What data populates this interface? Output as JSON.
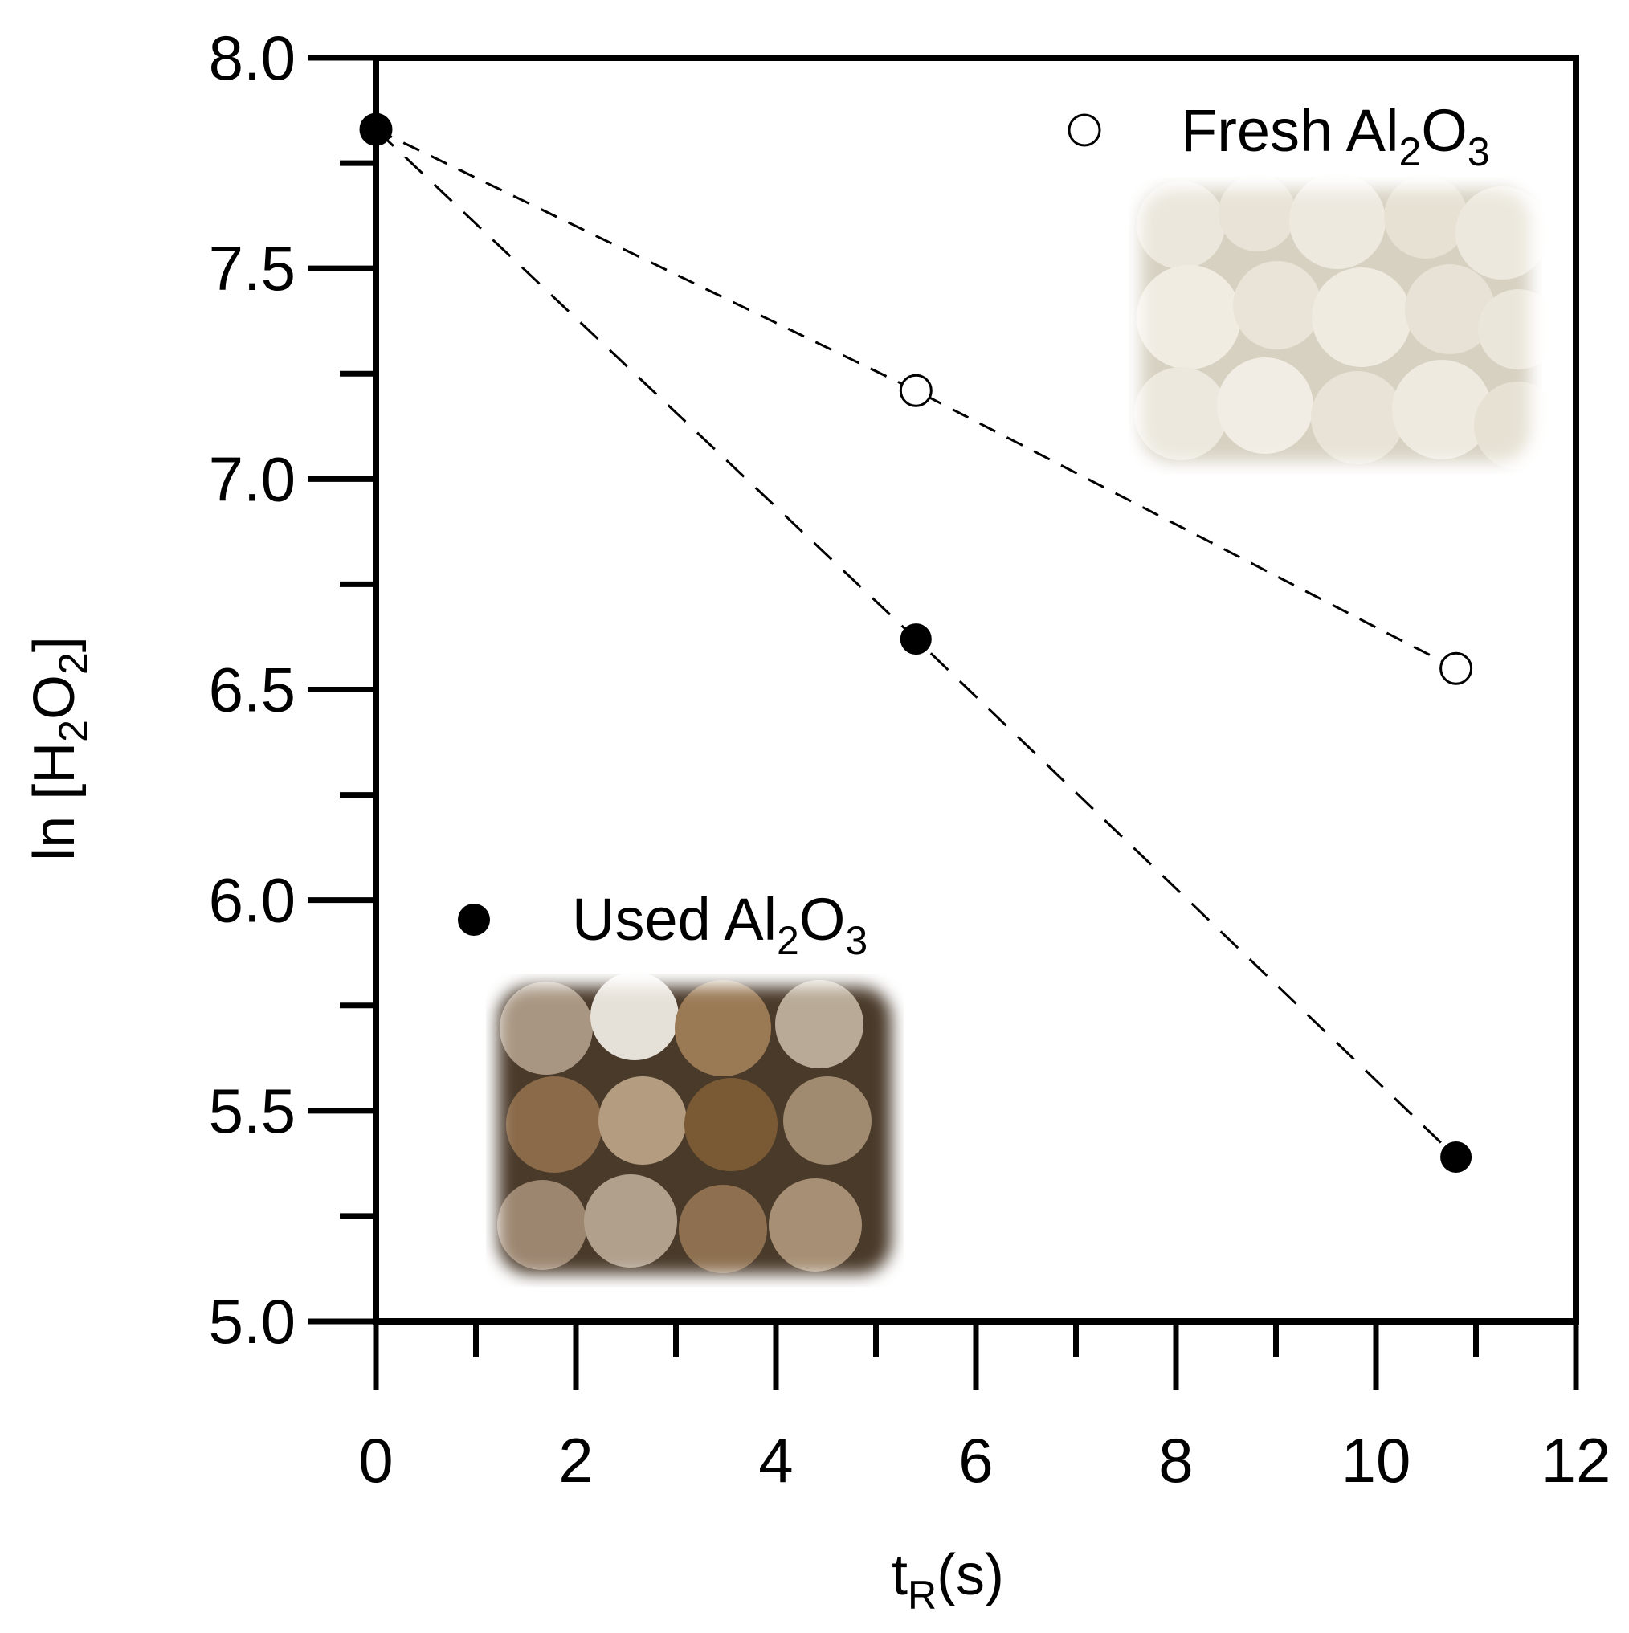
{
  "chart_data": {
    "type": "scatter",
    "xlabel": "tR(s)",
    "ylabel": "ln [H2O2]",
    "xlim": [
      0,
      12
    ],
    "ylim": [
      5.0,
      8.0
    ],
    "x_ticks": [
      "0",
      "2",
      "4",
      "6",
      "8",
      "10",
      "12"
    ],
    "y_ticks": [
      "5.0",
      "5.5",
      "6.0",
      "6.5",
      "7.0",
      "7.5",
      "8.0"
    ],
    "grid": false,
    "series": [
      {
        "name": "Fresh Al2O3",
        "marker": "open-circle",
        "x": [
          0,
          5.4,
          10.8
        ],
        "y": [
          7.83,
          7.21,
          6.55
        ],
        "fit": "dashed-line",
        "photo": "white alumina beads"
      },
      {
        "name": "Used Al2O3",
        "marker": "filled-circle",
        "x": [
          0,
          5.4,
          10.8
        ],
        "y": [
          7.83,
          6.62,
          5.39
        ],
        "fit": "dashed-line",
        "photo": "brown stained alumina beads"
      }
    ],
    "legend_placement": "inline-near-photos",
    "colors": {
      "axis": "#000000",
      "marker": "#000000",
      "background": "#ffffff"
    }
  },
  "labels": {
    "xlabel_main": "t",
    "xlabel_sub": "R",
    "xlabel_tail": "(s)",
    "ylabel_main": "ln [H",
    "ylabel_sub1": "2",
    "ylabel_mid": "O",
    "ylabel_sub2": "2",
    "ylabel_tail": "]"
  },
  "legend": {
    "fresh": {
      "main": "Fresh Al",
      "sub1": "2",
      "mid": "O",
      "sub2": "3"
    },
    "used": {
      "main": "Used Al",
      "sub1": "2",
      "mid": "O",
      "sub2": "3"
    }
  }
}
